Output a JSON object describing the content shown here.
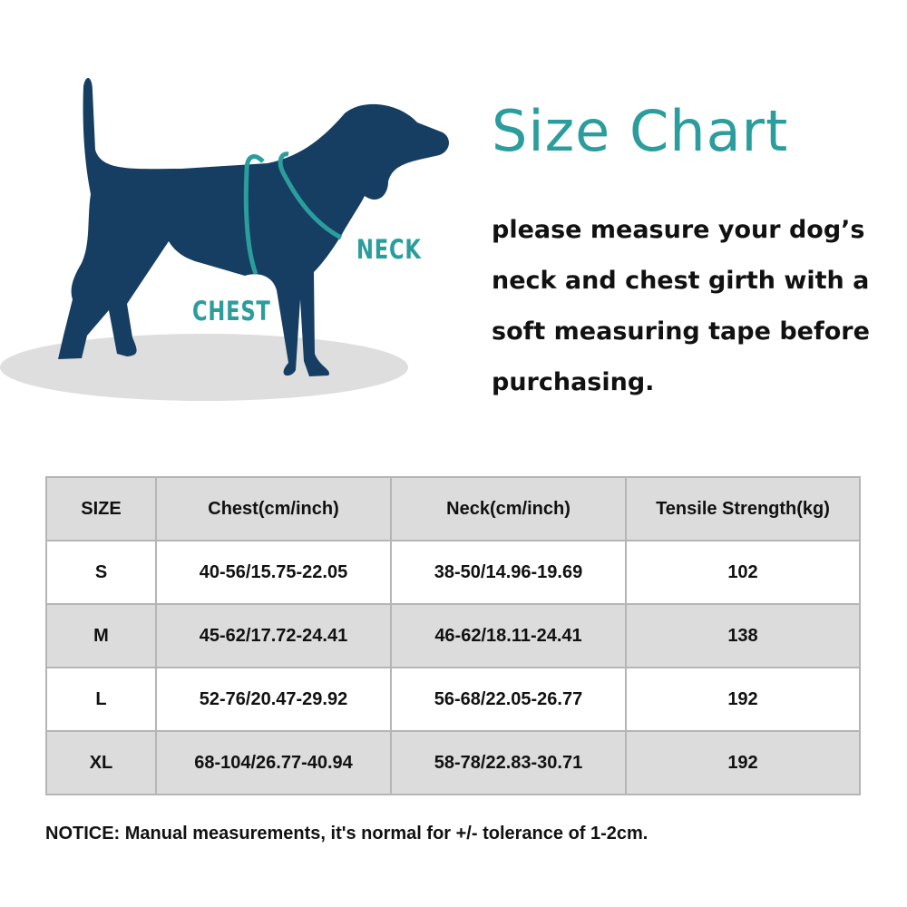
{
  "colors": {
    "navy": "#163e63",
    "teal": "#2a9d9c",
    "shadow": "#dedede",
    "header_row": "#dcdcdc"
  },
  "illustration": {
    "neck_label": "NECK",
    "chest_label": "CHEST"
  },
  "title": "Size Chart",
  "intro_lines": [
    "please measure your dog’s",
    "neck and chest girth with a",
    "soft measuring tape before",
    "purchasing."
  ],
  "table": {
    "headers": [
      "SIZE",
      "Chest(cm/inch)",
      "Neck(cm/inch)",
      "Tensile Strength(kg)"
    ],
    "rows": [
      [
        "S",
        "40-56/15.75-22.05",
        "38-50/14.96-19.69",
        "102"
      ],
      [
        "M",
        "45-62/17.72-24.41",
        "46-62/18.11-24.41",
        "138"
      ],
      [
        "L",
        "52-76/20.47-29.92",
        "56-68/22.05-26.77",
        "192"
      ],
      [
        "XL",
        "68-104/26.77-40.94",
        "58-78/22.83-30.71",
        "192"
      ]
    ]
  },
  "notice": "NOTICE: Manual measurements, it's normal for +/- tolerance of 1-2cm."
}
